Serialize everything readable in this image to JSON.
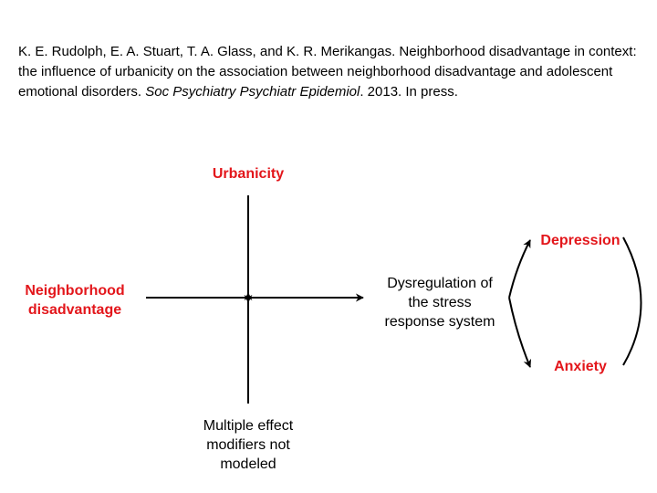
{
  "citation": {
    "part1": "K. E. Rudolph, E. A. Stuart, T. A. Glass, and K. R. Merikangas. Neighborhood disadvantage in context: the influence of urbanicity on the association between neighborhood disadvantage and adolescent emotional disorders. ",
    "journal": "Soc Psychiatry Psychiatr Epidemiol",
    "part2": ". 2013. In press."
  },
  "diagram": {
    "urbanicity": "Urbanicity",
    "neighborhood_line1": "Neighborhood",
    "neighborhood_line2": "disadvantage",
    "dysreg_line1": "Dysregulation of",
    "dysreg_line2": "the stress",
    "dysreg_line3": "response system",
    "depression": "Depression",
    "anxiety": "Anxiety",
    "modifiers_line1": "Multiple effect",
    "modifiers_line2": "modifiers not",
    "modifiers_line3": "modeled"
  },
  "colors": {
    "accent_red": "#e3161b",
    "line": "#000000"
  }
}
